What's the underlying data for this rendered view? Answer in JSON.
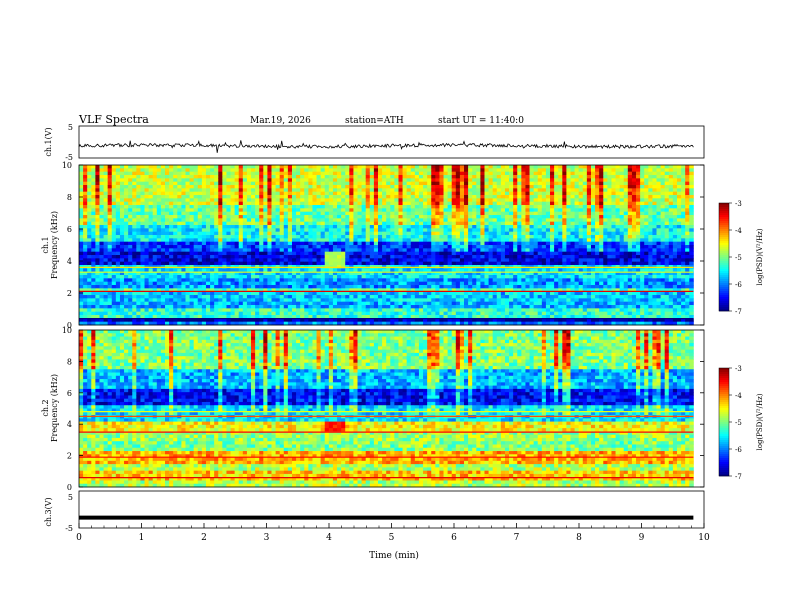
{
  "header": {
    "title": "VLF  Spectra",
    "date": "Mar.19, 2026",
    "station": "station=ATH",
    "start": "start  UT  =   11:40:0"
  },
  "chart_data": [
    {
      "type": "line",
      "name": "ch1-waveform",
      "ylabel": "ch.1(V)",
      "yticks": [
        "5",
        "-5"
      ],
      "ylim": [
        -5,
        5
      ],
      "xlim": [
        0,
        10
      ],
      "duration_min": 9.83,
      "baseline_v": -1.2,
      "jitter_v": 0.5,
      "color": "#000000"
    },
    {
      "type": "heatmap",
      "name": "ch1-spectrogram",
      "xlabel": "",
      "ylabel": "Frequency  (kHz)",
      "channel_label": "ch.1",
      "yticks": [
        "10",
        "8",
        "6",
        "4",
        "2",
        "0"
      ],
      "ylim": [
        0,
        10
      ],
      "xlim": [
        0,
        10
      ],
      "duration_min": 9.83,
      "colorbar": {
        "label": "log(PSD)(V²/Hz)",
        "ticks": [
          "-3",
          "-4",
          "-5",
          "-6",
          "-7"
        ],
        "range": [
          -7,
          -3
        ]
      },
      "bands": [
        {
          "f": [
            0.0,
            0.2
          ],
          "v": -6.0
        },
        {
          "f": [
            0.2,
            0.5
          ],
          "v": -6.9
        },
        {
          "f": [
            0.5,
            1.0
          ],
          "v": -5.3
        },
        {
          "f": [
            1.0,
            1.4
          ],
          "v": -5.8
        },
        {
          "f": [
            1.4,
            2.0
          ],
          "v": -5.7
        },
        {
          "f": [
            2.0,
            2.3
          ],
          "v": -5.2
        },
        {
          "f": [
            2.3,
            3.0
          ],
          "v": -5.9
        },
        {
          "f": [
            3.0,
            3.7
          ],
          "v": -5.6
        },
        {
          "f": [
            3.7,
            4.6
          ],
          "v": -6.6
        },
        {
          "f": [
            4.6,
            5.3
          ],
          "v": -6.3
        },
        {
          "f": [
            5.3,
            6.2
          ],
          "v": -5.5
        },
        {
          "f": [
            6.2,
            7.5
          ],
          "v": -5.1
        },
        {
          "f": [
            7.5,
            10.0
          ],
          "v": -4.7
        }
      ],
      "lines": [
        {
          "f": 0.4,
          "v": -7.0
        },
        {
          "f": 2.1,
          "v": -3.4
        },
        {
          "f": 3.3,
          "v": -4.6
        },
        {
          "f": 3.6,
          "v": -4.4
        }
      ],
      "patch": {
        "t": [
          3.9,
          4.25
        ],
        "f": [
          3.6,
          4.6
        ],
        "v": -4.8
      }
    },
    {
      "type": "heatmap",
      "name": "ch2-spectrogram",
      "xlabel": "",
      "ylabel": "Frequency  (kHz)",
      "channel_label": "ch.2",
      "yticks": [
        "10",
        "8",
        "6",
        "4",
        "2",
        "0"
      ],
      "ylim": [
        0,
        10
      ],
      "xlim": [
        0,
        10
      ],
      "duration_min": 9.83,
      "colorbar": {
        "label": "log(PSD)(V²/Hz)",
        "ticks": [
          "-3",
          "-4",
          "-5",
          "-6",
          "-7"
        ],
        "range": [
          -7,
          -3
        ]
      },
      "bands": [
        {
          "f": [
            0.0,
            0.4
          ],
          "v": -4.8
        },
        {
          "f": [
            0.4,
            1.0
          ],
          "v": -4.3
        },
        {
          "f": [
            1.0,
            1.5
          ],
          "v": -4.8
        },
        {
          "f": [
            1.5,
            2.2
          ],
          "v": -4.2
        },
        {
          "f": [
            2.2,
            3.0
          ],
          "v": -5.0
        },
        {
          "f": [
            3.0,
            3.6
          ],
          "v": -4.9
        },
        {
          "f": [
            3.6,
            4.2
          ],
          "v": -4.5
        },
        {
          "f": [
            4.2,
            5.2
          ],
          "v": -5.6
        },
        {
          "f": [
            5.2,
            6.3
          ],
          "v": -6.5
        },
        {
          "f": [
            6.3,
            7.5
          ],
          "v": -5.8
        },
        {
          "f": [
            7.5,
            10.0
          ],
          "v": -5.0
        }
      ],
      "lines": [
        {
          "f": 0.6,
          "v": -3.4
        },
        {
          "f": 1.9,
          "v": -3.5
        },
        {
          "f": 3.5,
          "v": -3.5
        },
        {
          "f": 4.5,
          "v": -3.8
        },
        {
          "f": 4.8,
          "v": -4.6
        }
      ],
      "patch": {
        "t": [
          3.95,
          4.25
        ],
        "f": [
          3.5,
          4.2
        ],
        "v": -3.6
      }
    },
    {
      "type": "line",
      "name": "ch3-waveform",
      "xlabel": "Time  (min)",
      "ylabel": "ch.3(V)",
      "yticks": [
        "5",
        "-5"
      ],
      "ylim": [
        -5,
        5
      ],
      "xlim": [
        0,
        10
      ],
      "xticks": [
        "0",
        "1",
        "2",
        "3",
        "4",
        "5",
        "6",
        "7",
        "8",
        "9",
        "10"
      ],
      "duration_min": 9.83,
      "baseline_v": -2.2,
      "color": "#000000"
    }
  ]
}
